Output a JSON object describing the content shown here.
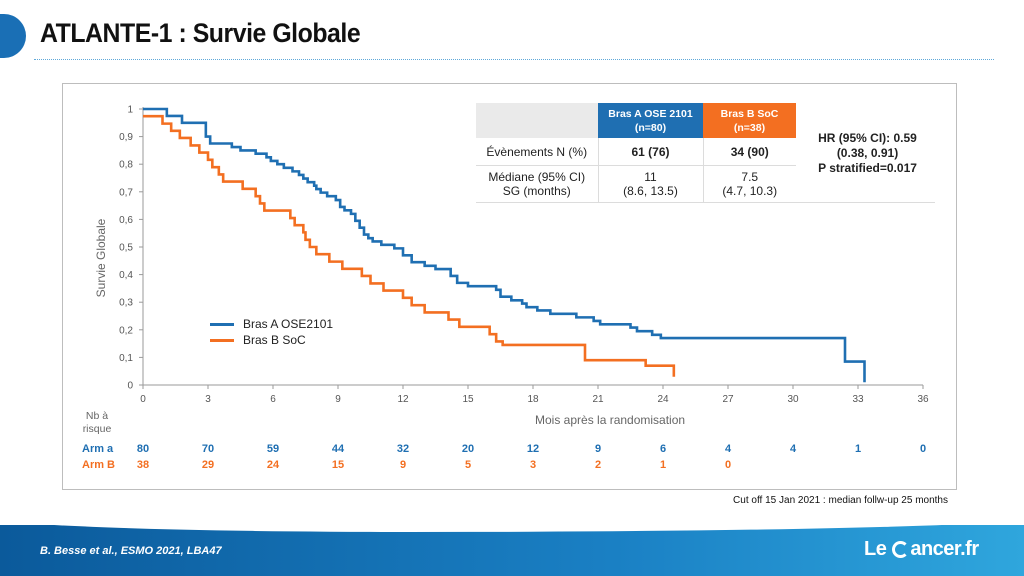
{
  "slide": {
    "title": "ATLANTE-1 : Survie Globale",
    "citation": "B. Besse et al., ESMO 2021, LBA47",
    "cutoff": "Cut off 15 Jan 2021 : median follw-up 25 months",
    "logo_le": "Le",
    "logo_rest": "ancer.fr"
  },
  "colors": {
    "arm_a": "#1f6fb2",
    "arm_b": "#f36f21",
    "brand": "#1a6fb5"
  },
  "table": {
    "header_a_line1": "Bras A OSE 2101",
    "header_a_line2": "(n=80)",
    "header_b_line1": "Bras B SoC",
    "header_b_line2": "(n=38)",
    "row1_label": "Évènements N (%)",
    "row1_a": "61 (76)",
    "row1_b": "34 (90)",
    "row2_label_line1": "Médiane (95% CI)",
    "row2_label_line2": "SG (months)",
    "row2_a_line1": "11",
    "row2_a_line2": "(8.6, 13.5)",
    "row2_b_line1": "7.5",
    "row2_b_line2": "(4.7, 10.3)"
  },
  "hr": {
    "line1": "HR (95% CI): 0.59",
    "line2": "(0.38, 0.91)",
    "line3": "P stratified=0.017"
  },
  "chart_data": {
    "type": "line",
    "ylabel": "Survie Globale",
    "xlabel": "Mois après la randomisation",
    "xlim": [
      0,
      36
    ],
    "ylim": [
      0,
      1
    ],
    "x_ticks": [
      "0",
      "3",
      "6",
      "9",
      "12",
      "15",
      "18",
      "21",
      "24",
      "27",
      "30",
      "33",
      "36"
    ],
    "y_ticks": [
      "0",
      "0,1",
      "0,2",
      "0,3",
      "0,4",
      "0,5",
      "0,6",
      "0,7",
      "0,8",
      "0,9",
      "1"
    ],
    "legend_position": "left-center",
    "series": [
      {
        "name": "Bras A OSE2101",
        "steps": [
          [
            0,
            1
          ],
          [
            1.1,
            0.975
          ],
          [
            1.8,
            0.95
          ],
          [
            2.9,
            0.9
          ],
          [
            3.1,
            0.875
          ],
          [
            4.1,
            0.862
          ],
          [
            4.5,
            0.85
          ],
          [
            5.2,
            0.838
          ],
          [
            5.7,
            0.825
          ],
          [
            5.9,
            0.812
          ],
          [
            6.2,
            0.8
          ],
          [
            6.5,
            0.787
          ],
          [
            6.9,
            0.774
          ],
          [
            7.2,
            0.761
          ],
          [
            7.4,
            0.748
          ],
          [
            7.6,
            0.735
          ],
          [
            7.9,
            0.722
          ],
          [
            8.0,
            0.71
          ],
          [
            8.2,
            0.697
          ],
          [
            8.5,
            0.684
          ],
          [
            8.9,
            0.67
          ],
          [
            9.1,
            0.645
          ],
          [
            9.3,
            0.633
          ],
          [
            9.6,
            0.62
          ],
          [
            9.8,
            0.595
          ],
          [
            10.0,
            0.57
          ],
          [
            10.2,
            0.545
          ],
          [
            10.4,
            0.532
          ],
          [
            10.6,
            0.52
          ],
          [
            11.0,
            0.508
          ],
          [
            11.6,
            0.495
          ],
          [
            12.0,
            0.47
          ],
          [
            12.4,
            0.445
          ],
          [
            13.0,
            0.432
          ],
          [
            13.5,
            0.42
          ],
          [
            14.2,
            0.395
          ],
          [
            14.5,
            0.37
          ],
          [
            15.0,
            0.358
          ],
          [
            16.3,
            0.345
          ],
          [
            16.5,
            0.32
          ],
          [
            17.0,
            0.307
          ],
          [
            17.5,
            0.295
          ],
          [
            17.7,
            0.282
          ],
          [
            18.2,
            0.27
          ],
          [
            18.8,
            0.258
          ],
          [
            20.0,
            0.245
          ],
          [
            20.8,
            0.232
          ],
          [
            21.1,
            0.22
          ],
          [
            22.5,
            0.208
          ],
          [
            22.8,
            0.195
          ],
          [
            23.5,
            0.182
          ],
          [
            23.9,
            0.17
          ],
          [
            32.4,
            0.085
          ],
          [
            33.3,
            0.01
          ]
        ],
        "end_x": 33.3
      },
      {
        "name": "Bras B SoC",
        "steps": [
          [
            0,
            0.974
          ],
          [
            0.9,
            0.947
          ],
          [
            1.3,
            0.921
          ],
          [
            1.7,
            0.895
          ],
          [
            2.2,
            0.868
          ],
          [
            2.6,
            0.842
          ],
          [
            3.0,
            0.816
          ],
          [
            3.2,
            0.789
          ],
          [
            3.5,
            0.763
          ],
          [
            3.7,
            0.737
          ],
          [
            4.6,
            0.711
          ],
          [
            5.2,
            0.684
          ],
          [
            5.4,
            0.658
          ],
          [
            5.6,
            0.632
          ],
          [
            6.8,
            0.605
          ],
          [
            7.0,
            0.579
          ],
          [
            7.4,
            0.553
          ],
          [
            7.5,
            0.526
          ],
          [
            7.7,
            0.5
          ],
          [
            8.0,
            0.474
          ],
          [
            8.6,
            0.447
          ],
          [
            9.2,
            0.421
          ],
          [
            10.1,
            0.395
          ],
          [
            10.5,
            0.368
          ],
          [
            11.1,
            0.342
          ],
          [
            12.0,
            0.316
          ],
          [
            12.4,
            0.289
          ],
          [
            13.0,
            0.263
          ],
          [
            14.1,
            0.237
          ],
          [
            14.6,
            0.211
          ],
          [
            16.0,
            0.184
          ],
          [
            16.3,
            0.158
          ],
          [
            16.6,
            0.145
          ],
          [
            20.4,
            0.09
          ],
          [
            23.2,
            0.07
          ],
          [
            24.5,
            0.03
          ]
        ],
        "end_x": 24.5
      }
    ],
    "at_risk": {
      "header_line1": "Nb à",
      "header_line2": "risque",
      "x": [
        0,
        3,
        6,
        9,
        12,
        15,
        18,
        21,
        24,
        27,
        30,
        33,
        36
      ],
      "arm_a_label": "Arm a",
      "arm_b_label": "Arm B",
      "arm_a": [
        "80",
        "70",
        "59",
        "44",
        "32",
        "20",
        "12",
        "9",
        "6",
        "4",
        "4",
        "1",
        "0"
      ],
      "arm_b": [
        "38",
        "29",
        "24",
        "15",
        "9",
        "5",
        "3",
        "2",
        "1",
        "0"
      ]
    }
  }
}
